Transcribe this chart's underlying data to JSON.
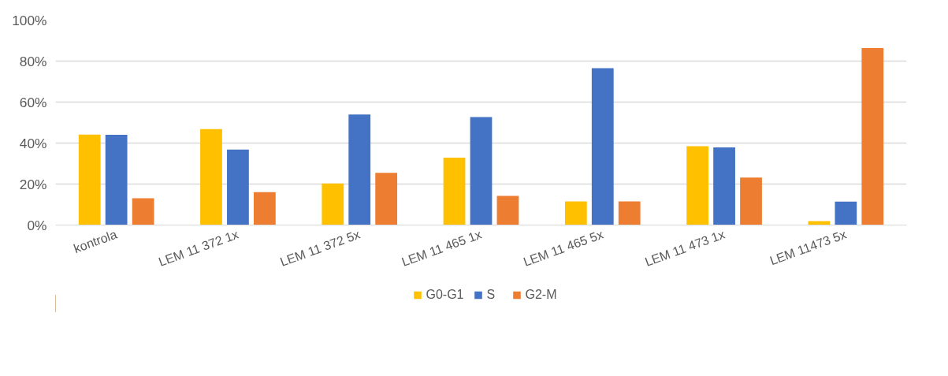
{
  "chart_data": {
    "type": "bar",
    "categories": [
      "kontrola",
      "LEM 11 372 1x",
      "LEM 11 372 5x",
      "LEM 11 465 1x",
      "LEM 11 465 5x",
      "LEM 11 473 1x",
      "LEM 11473 5x"
    ],
    "series": [
      {
        "name": "G0-G1",
        "color": "#ffc000",
        "values": [
          44.1,
          46.8,
          20.3,
          32.9,
          11.5,
          38.5,
          1.9
        ]
      },
      {
        "name": "S",
        "color": "#4472c4",
        "values": [
          44.0,
          36.8,
          53.9,
          52.7,
          76.5,
          37.9,
          11.4
        ]
      },
      {
        "name": "G2-M",
        "color": "#ed7d31",
        "values": [
          13.1,
          16.1,
          25.5,
          14.2,
          11.5,
          23.2,
          86.3
        ]
      }
    ],
    "ylim": [
      0,
      100
    ],
    "yticks": [
      {
        "value": 0,
        "label": "0%"
      },
      {
        "value": 20,
        "label": "20%"
      },
      {
        "value": 40,
        "label": "40%"
      },
      {
        "value": 60,
        "label": "60%"
      },
      {
        "value": 80,
        "label": "80%"
      },
      {
        "value": 100,
        "label": "100%"
      }
    ],
    "grid": "y",
    "legend": "bottom"
  }
}
